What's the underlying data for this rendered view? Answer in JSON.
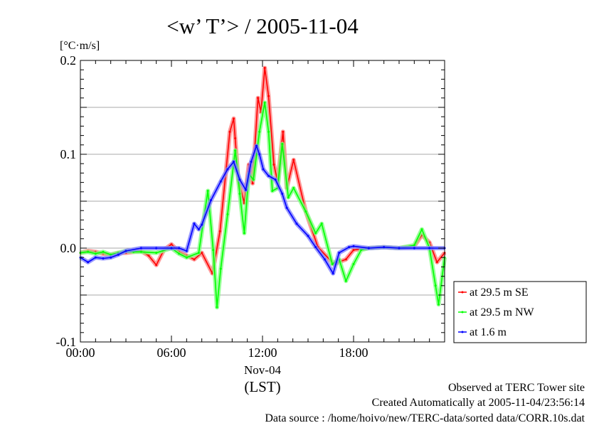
{
  "chart_data": {
    "type": "line",
    "title": "<w’ T’> / 2005-11-04",
    "ylabel": "[°C·m/s]",
    "xlabel": "(LST)",
    "date_label": "Nov-04",
    "xlim": [
      0,
      24
    ],
    "ylim": [
      -0.1,
      0.2
    ],
    "x_unit": "hours",
    "x_ticks": [
      {
        "v": 0,
        "label": "00:00"
      },
      {
        "v": 6,
        "label": "06:00"
      },
      {
        "v": 12,
        "label": "12:00"
      },
      {
        "v": 18,
        "label": "18:00"
      }
    ],
    "y_ticks": [
      {
        "v": 0.2,
        "label": "0.2"
      },
      {
        "v": 0.1,
        "label": "0.1"
      },
      {
        "v": 0.0,
        "label": "0.0"
      },
      {
        "v": -0.1,
        "label": "-0.1"
      }
    ],
    "grid_y": [
      0.15,
      0.1,
      0.05,
      0.0,
      -0.05
    ],
    "grid": true,
    "legend_position": "right-bottom-outside",
    "series": [
      {
        "name": "at 29.5 m SE",
        "color": "#ff0000",
        "x": [
          0,
          0.5,
          1,
          1.5,
          2,
          2.5,
          3,
          3.5,
          4,
          4.5,
          5,
          5.5,
          6,
          6.5,
          7,
          7.5,
          8,
          8.7,
          9.2,
          9.85,
          10.1,
          10.2,
          10.4,
          10.8,
          11.1,
          11.35,
          11.7,
          11.9,
          12.15,
          12.4,
          12.75,
          13,
          13.35,
          13.6,
          14.05,
          14.85,
          15.65,
          16.7,
          17.5,
          18,
          19,
          20,
          21,
          22,
          22.5,
          23,
          23.5,
          24
        ],
        "y": [
          -0.005,
          -0.003,
          -0.004,
          -0.006,
          -0.007,
          -0.005,
          -0.005,
          -0.004,
          -0.003,
          -0.008,
          -0.018,
          -0.002,
          0.004,
          -0.004,
          -0.008,
          -0.012,
          -0.005,
          -0.027,
          0.018,
          0.124,
          0.138,
          0.117,
          0.073,
          0.048,
          0.089,
          0.069,
          0.16,
          0.145,
          0.192,
          0.162,
          0.089,
          0.071,
          0.124,
          0.064,
          0.094,
          0.039,
          0.001,
          -0.017,
          -0.012,
          -0.002,
          0.0,
          0.001,
          0.0,
          0.002,
          0.014,
          0.006,
          -0.015,
          -0.005
        ]
      },
      {
        "name": "at 29.5 m NW",
        "color": "#00ff00",
        "x": [
          0,
          0.5,
          1,
          1.5,
          2,
          2.5,
          3,
          3.5,
          4,
          5,
          6,
          6.5,
          7,
          7.8,
          8.4,
          8.75,
          9.0,
          9.25,
          9.7,
          10.2,
          10.5,
          10.8,
          11.1,
          11.4,
          11.8,
          12.15,
          12.4,
          12.65,
          13,
          13.3,
          13.7,
          14.05,
          14.85,
          15.5,
          15.9,
          16.6,
          17.05,
          17.5,
          18,
          18.5,
          19,
          20,
          21,
          22,
          22.5,
          23,
          23.4,
          23.6,
          24
        ],
        "y": [
          -0.005,
          -0.004,
          -0.006,
          -0.004,
          -0.007,
          -0.005,
          -0.003,
          -0.004,
          -0.004,
          -0.005,
          0.0,
          -0.006,
          -0.01,
          -0.005,
          0.061,
          -0.002,
          -0.063,
          -0.022,
          0.036,
          0.104,
          0.058,
          0.016,
          0.079,
          0.073,
          0.124,
          0.155,
          0.124,
          0.061,
          0.064,
          0.111,
          0.054,
          0.064,
          0.039,
          0.016,
          0.026,
          -0.017,
          -0.012,
          -0.035,
          -0.017,
          -0.002,
          0.0,
          0.001,
          0.0,
          0.003,
          0.02,
          0.0,
          -0.04,
          -0.06,
          -0.01
        ]
      },
      {
        "name": "at 1.6 m",
        "color": "#0000ff",
        "x": [
          0,
          0.5,
          1,
          1.5,
          2,
          2.5,
          3,
          4,
          5,
          6,
          6.5,
          7,
          7.5,
          7.8,
          8.0,
          8.6,
          9.25,
          9.7,
          10.1,
          10.5,
          10.9,
          11.25,
          11.6,
          11.8,
          12.05,
          12.4,
          12.85,
          13.3,
          13.6,
          14.25,
          15,
          15.5,
          16.1,
          16.65,
          17.05,
          17.7,
          18,
          19,
          20,
          21,
          22,
          23,
          24
        ],
        "y": [
          -0.01,
          -0.015,
          -0.01,
          -0.011,
          -0.01,
          -0.007,
          -0.003,
          0.0,
          0.0,
          0.0,
          0.0,
          -0.003,
          0.026,
          0.02,
          0.025,
          0.051,
          0.071,
          0.084,
          0.092,
          0.073,
          0.062,
          0.092,
          0.109,
          0.1,
          0.084,
          0.077,
          0.073,
          0.058,
          0.043,
          0.026,
          0.013,
          0.001,
          -0.012,
          -0.027,
          -0.005,
          0.001,
          0.002,
          0.0,
          0.001,
          0.0,
          0.0,
          0.0,
          0.0
        ]
      }
    ]
  },
  "footer": {
    "line1": "Observed at TERC Tower site",
    "line2": "Created Automatically at 2005-11-04/23:56:14",
    "line3": "Data source : /home/hoivo/new/TERC-data/sorted  data/CORR.10s.dat"
  }
}
